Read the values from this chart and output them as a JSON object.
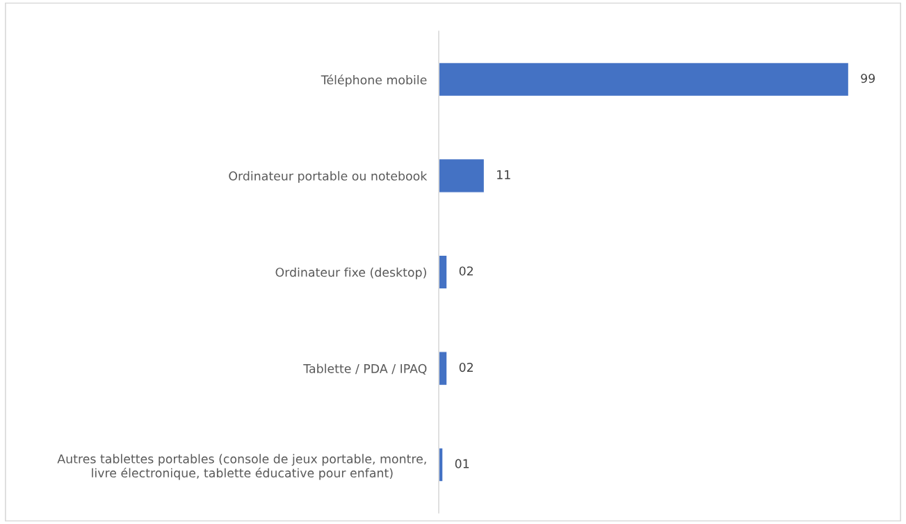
{
  "chart_data": {
    "type": "bar",
    "orientation": "horizontal",
    "categories": [
      "Téléphone mobile",
      "Ordinateur portable ou notebook",
      "Ordinateur fixe (desktop)",
      "Tablette / PDA / IPAQ",
      "Autres tablettes portables (console de jeux portable, montre,\nlivre électronique, tablette éducative pour enfant)"
    ],
    "values": [
      99,
      11,
      2,
      2,
      1
    ],
    "value_labels": [
      "99",
      "11",
      "02",
      "02",
      "01"
    ],
    "color": "#4472c4",
    "tick_labels": "y",
    "grid": false,
    "legend": false
  }
}
